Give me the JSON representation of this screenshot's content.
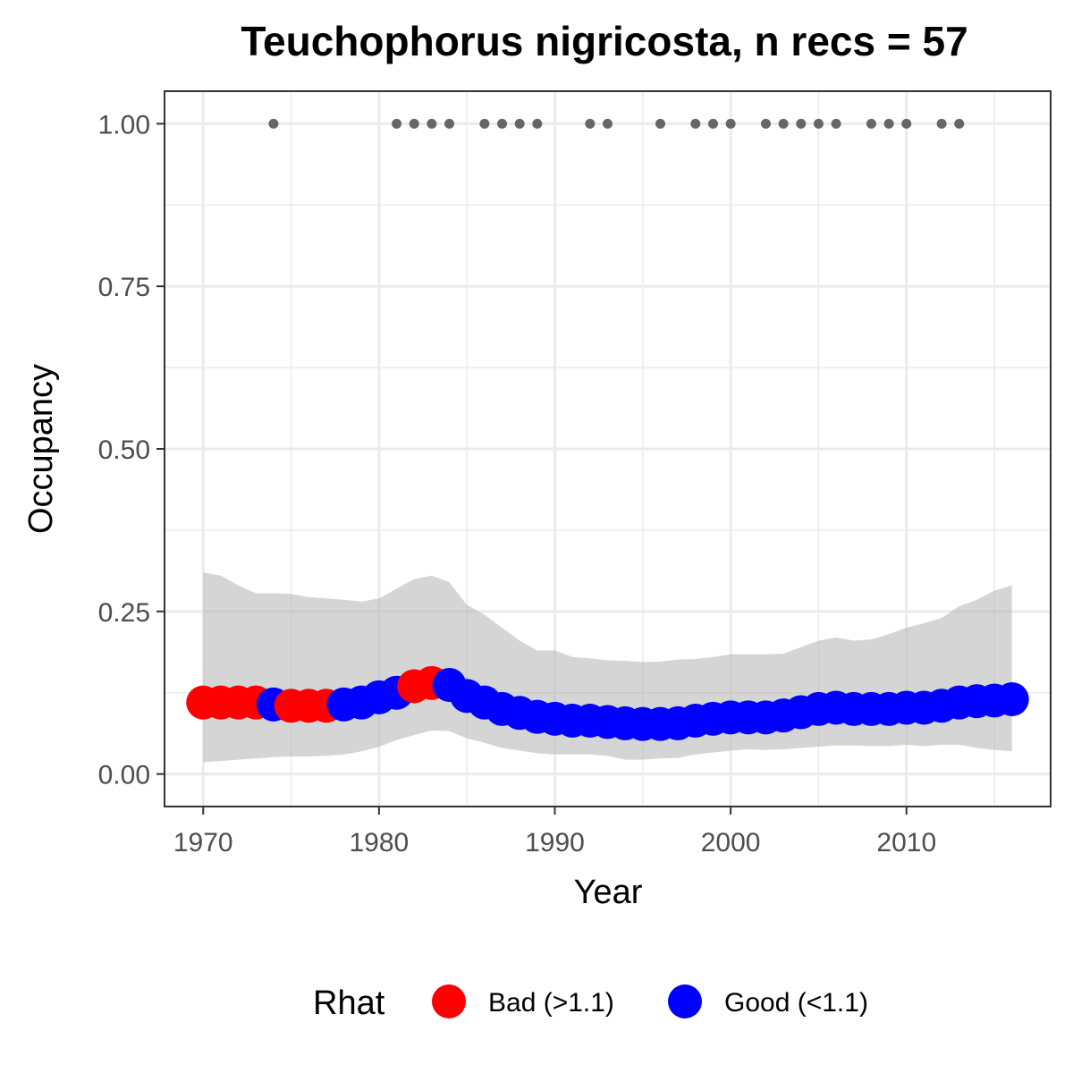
{
  "chart_data": {
    "type": "line",
    "title": "Teuchophorus nigricosta, n recs = 57",
    "xlabel": "Year",
    "ylabel": "Occupancy",
    "xlim": [
      1967.8,
      2018.2
    ],
    "ylim": [
      -0.05,
      1.05
    ],
    "x_ticks": [
      1970,
      1980,
      1990,
      2000,
      2010
    ],
    "x_tick_labels": [
      "1970",
      "1980",
      "1990",
      "2000",
      "2010"
    ],
    "y_ticks": [
      0,
      0.25,
      0.5,
      0.75,
      1.0
    ],
    "y_tick_labels": [
      "0.00",
      "0.25",
      "0.50",
      "0.75",
      "1.00"
    ],
    "grid": true,
    "legend": {
      "position": "bottom",
      "title": "Rhat",
      "entries": [
        {
          "label": "Bad (>1.1)",
          "color": "#ff0000"
        },
        {
          "label": "Good (<1.1)",
          "color": "#0000ff"
        }
      ]
    },
    "series": [
      {
        "kind": "occupancy",
        "x": [
          1970,
          1971,
          1972,
          1973,
          1974,
          1975,
          1976,
          1977,
          1978,
          1979,
          1980,
          1981,
          1982,
          1983,
          1984,
          1985,
          1986,
          1987,
          1988,
          1989,
          1990,
          1991,
          1992,
          1993,
          1994,
          1995,
          1996,
          1997,
          1998,
          1999,
          2000,
          2001,
          2002,
          2003,
          2004,
          2005,
          2006,
          2007,
          2008,
          2009,
          2010,
          2011,
          2012,
          2013,
          2014,
          2015,
          2016
        ],
        "y": [
          0.11,
          0.11,
          0.11,
          0.11,
          0.107,
          0.105,
          0.105,
          0.105,
          0.107,
          0.11,
          0.118,
          0.125,
          0.135,
          0.14,
          0.137,
          0.12,
          0.11,
          0.1,
          0.094,
          0.088,
          0.085,
          0.082,
          0.082,
          0.08,
          0.078,
          0.077,
          0.077,
          0.078,
          0.082,
          0.085,
          0.087,
          0.087,
          0.087,
          0.09,
          0.095,
          0.1,
          0.102,
          0.1,
          0.1,
          0.1,
          0.102,
          0.102,
          0.105,
          0.11,
          0.112,
          0.113,
          0.115
        ],
        "rhat": [
          "Bad",
          "Bad",
          "Bad",
          "Bad",
          "Good",
          "Bad",
          "Bad",
          "Bad",
          "Good",
          "Good",
          "Good",
          "Good",
          "Bad",
          "Bad",
          "Good",
          "Good",
          "Good",
          "Good",
          "Good",
          "Good",
          "Good",
          "Good",
          "Good",
          "Good",
          "Good",
          "Good",
          "Good",
          "Good",
          "Good",
          "Good",
          "Good",
          "Good",
          "Good",
          "Good",
          "Good",
          "Good",
          "Good",
          "Good",
          "Good",
          "Good",
          "Good",
          "Good",
          "Good",
          "Good",
          "Good",
          "Good",
          "Good"
        ],
        "lower": [
          0.018,
          0.02,
          0.022,
          0.024,
          0.026,
          0.027,
          0.027,
          0.028,
          0.03,
          0.035,
          0.042,
          0.052,
          0.06,
          0.067,
          0.066,
          0.055,
          0.048,
          0.04,
          0.036,
          0.032,
          0.03,
          0.03,
          0.03,
          0.028,
          0.022,
          0.022,
          0.024,
          0.025,
          0.03,
          0.033,
          0.036,
          0.038,
          0.037,
          0.038,
          0.04,
          0.042,
          0.044,
          0.044,
          0.043,
          0.043,
          0.045,
          0.043,
          0.045,
          0.045,
          0.04,
          0.037,
          0.035
        ],
        "upper": [
          0.31,
          0.305,
          0.29,
          0.278,
          0.278,
          0.277,
          0.272,
          0.27,
          0.268,
          0.265,
          0.27,
          0.285,
          0.3,
          0.305,
          0.295,
          0.26,
          0.245,
          0.225,
          0.205,
          0.19,
          0.19,
          0.18,
          0.178,
          0.175,
          0.174,
          0.172,
          0.173,
          0.176,
          0.177,
          0.18,
          0.184,
          0.184,
          0.184,
          0.185,
          0.195,
          0.205,
          0.21,
          0.205,
          0.207,
          0.215,
          0.225,
          0.232,
          0.24,
          0.258,
          0.268,
          0.282,
          0.29
        ]
      },
      {
        "kind": "records",
        "color": "#666666",
        "x": [
          1974,
          1981,
          1982,
          1983,
          1984,
          1986,
          1987,
          1988,
          1989,
          1992,
          1993,
          1996,
          1998,
          1999,
          2000,
          2002,
          2003,
          2004,
          2005,
          2006,
          2008,
          2009,
          2010,
          2012,
          2013
        ],
        "y": [
          1,
          1,
          1,
          1,
          1,
          1,
          1,
          1,
          1,
          1,
          1,
          1,
          1,
          1,
          1,
          1,
          1,
          1,
          1,
          1,
          1,
          1,
          1,
          1,
          1
        ]
      }
    ]
  }
}
